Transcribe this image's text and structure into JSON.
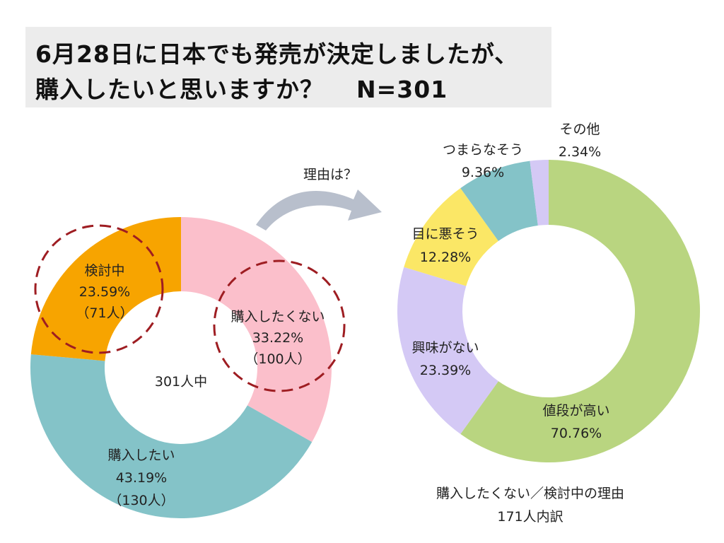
{
  "title": {
    "line1": "6月28日に日本でも発売が決定しましたが、",
    "line2": "購入したいと思いますか？",
    "sample": "N=301"
  },
  "arrow_label": "理由は？",
  "chart_data": [
    {
      "type": "pie",
      "subtype": "donut",
      "title": "購入したいと思いますか？",
      "center_label": "301人中",
      "total": 301,
      "slices": [
        {
          "label": "購入したくない",
          "percent": "33.22%",
          "count": "（100人）",
          "value": 33.22,
          "people": 100,
          "color": "#fbbfcb",
          "highlighted": true
        },
        {
          "label": "購入したい",
          "percent": "43.19%",
          "count": "（130人）",
          "value": 43.19,
          "people": 130,
          "color": "#84c3c8",
          "highlighted": false
        },
        {
          "label": "検討中",
          "percent": "23.59%",
          "count": "（71人）",
          "value": 23.59,
          "people": 71,
          "color": "#f7a400",
          "highlighted": true
        }
      ]
    },
    {
      "type": "pie",
      "subtype": "donut",
      "title": "購入したくない／検討中の理由",
      "caption_line1": "購入したくない／検討中の理由",
      "caption_line2": "171人内訳",
      "total": 171,
      "slices": [
        {
          "label": "値段が高い",
          "percent": "70.76%",
          "value": 70.76,
          "color": "#b9d580"
        },
        {
          "label": "興味がない",
          "percent": "23.39%",
          "value": 23.39,
          "color": "#d4c9f5"
        },
        {
          "label": "目に悪そう",
          "percent": "12.28%",
          "value": 12.28,
          "color": "#fbe766"
        },
        {
          "label": "つまらなそう",
          "percent": "9.36%",
          "value": 9.36,
          "color": "#84c3c8"
        },
        {
          "label": "その他",
          "percent": "2.34%",
          "value": 2.34,
          "color": "#d4c9f5"
        }
      ]
    }
  ],
  "colors": {
    "title_background": "#ececec",
    "highlight_circle": "#9e1d22",
    "arrow": "#b8bfcc"
  }
}
